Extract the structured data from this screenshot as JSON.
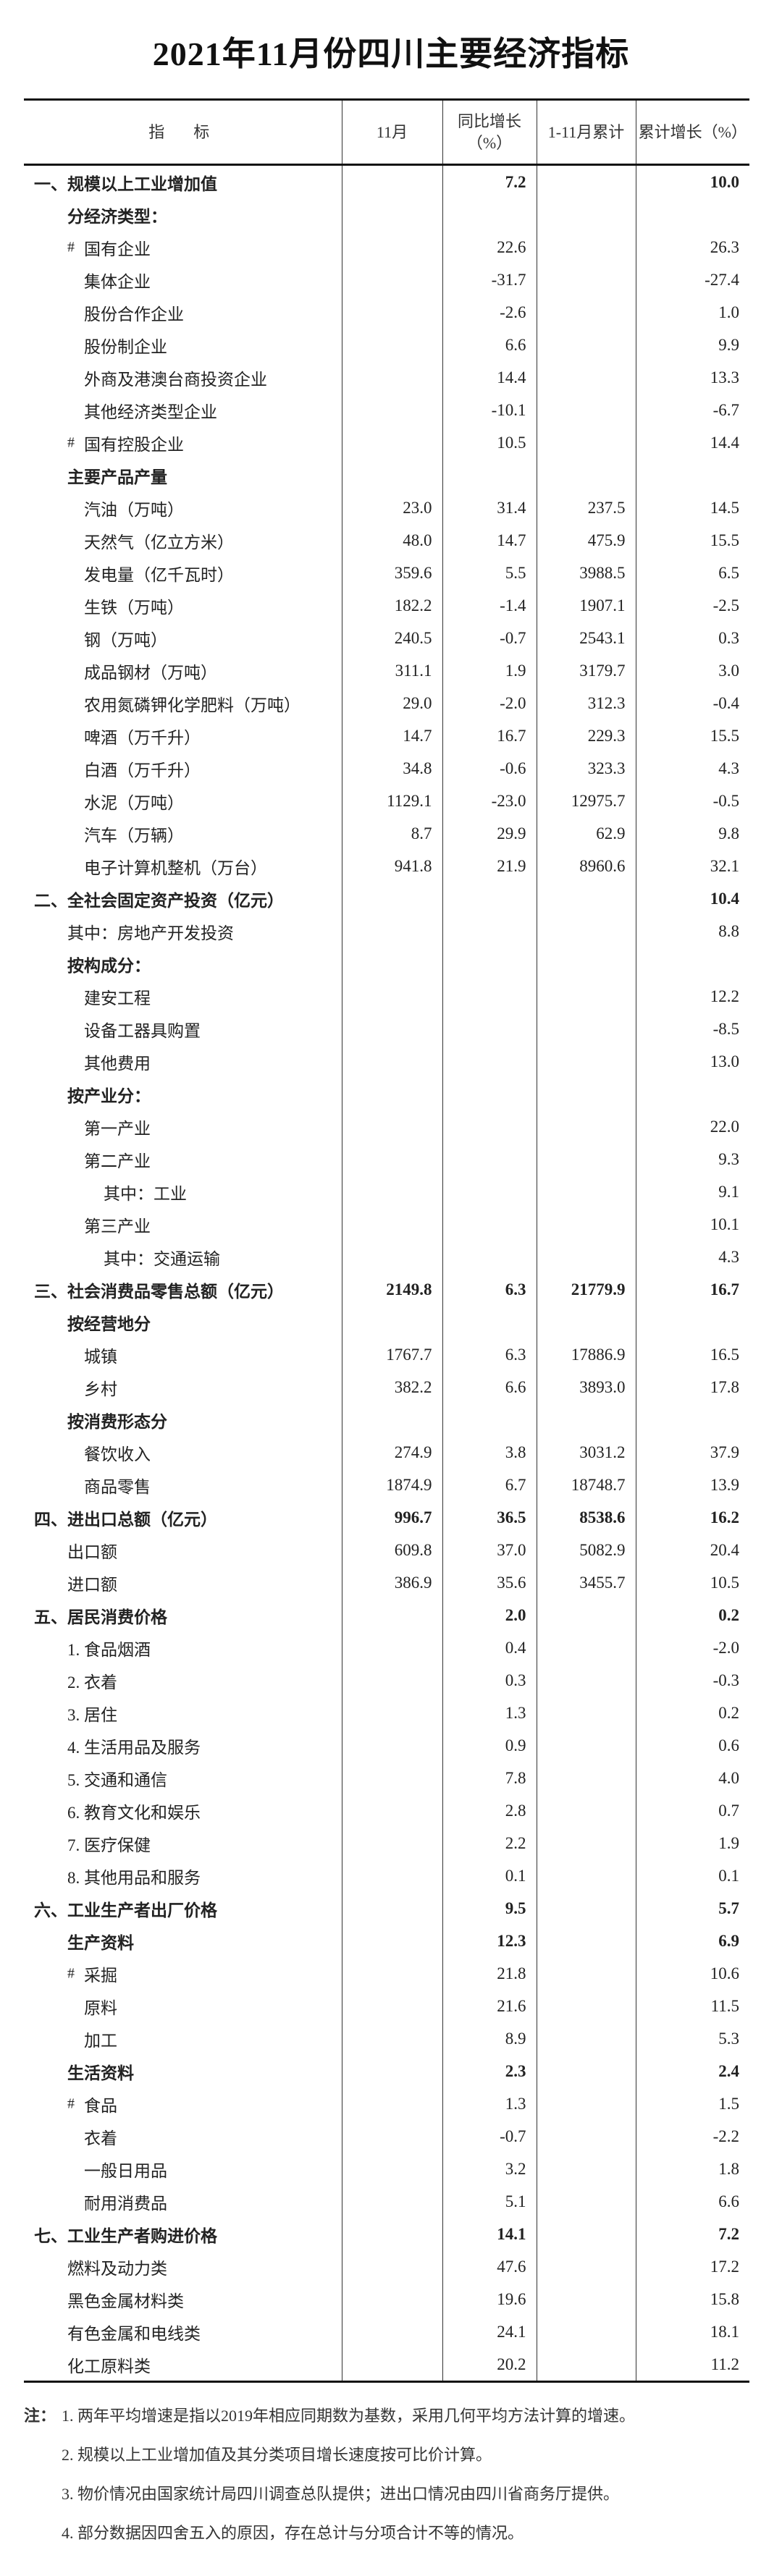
{
  "title": "2021年11月份四川主要经济指标",
  "headers": [
    "指标",
    "11月",
    "同比增长（%）",
    "1-11月累计",
    "累计增长（%）"
  ],
  "rows": [
    {
      "label": "一、规模以上工业增加值",
      "v": [
        "",
        "7.2",
        "",
        "10.0"
      ],
      "level": 0,
      "bold": true
    },
    {
      "label": "分经济类型：",
      "v": [
        "",
        "",
        "",
        ""
      ],
      "level": 1,
      "bold": true
    },
    {
      "label": "国有企业",
      "v": [
        "",
        "22.6",
        "",
        "26.3"
      ],
      "level": 2,
      "hash": "#"
    },
    {
      "label": "集体企业",
      "v": [
        "",
        "-31.7",
        "",
        "-27.4"
      ],
      "level": 2
    },
    {
      "label": "股份合作企业",
      "v": [
        "",
        "-2.6",
        "",
        "1.0"
      ],
      "level": 2
    },
    {
      "label": "股份制企业",
      "v": [
        "",
        "6.6",
        "",
        "9.9"
      ],
      "level": 2
    },
    {
      "label": "外商及港澳台商投资企业",
      "v": [
        "",
        "14.4",
        "",
        "13.3"
      ],
      "level": 2
    },
    {
      "label": "其他经济类型企业",
      "v": [
        "",
        "-10.1",
        "",
        "-6.7"
      ],
      "level": 2
    },
    {
      "label": "国有控股企业",
      "v": [
        "",
        "10.5",
        "",
        "14.4"
      ],
      "level": 2,
      "hash": "#"
    },
    {
      "label": "主要产品产量",
      "v": [
        "",
        "",
        "",
        ""
      ],
      "level": 1,
      "bold": true
    },
    {
      "label": "汽油（万吨）",
      "v": [
        "23.0",
        "31.4",
        "237.5",
        "14.5"
      ],
      "level": 2
    },
    {
      "label": "天然气（亿立方米）",
      "v": [
        "48.0",
        "14.7",
        "475.9",
        "15.5"
      ],
      "level": 2
    },
    {
      "label": "发电量（亿千瓦时）",
      "v": [
        "359.6",
        "5.5",
        "3988.5",
        "6.5"
      ],
      "level": 2
    },
    {
      "label": "生铁（万吨）",
      "v": [
        "182.2",
        "-1.4",
        "1907.1",
        "-2.5"
      ],
      "level": 2
    },
    {
      "label": "钢（万吨）",
      "v": [
        "240.5",
        "-0.7",
        "2543.1",
        "0.3"
      ],
      "level": 2
    },
    {
      "label": "成品钢材（万吨）",
      "v": [
        "311.1",
        "1.9",
        "3179.7",
        "3.0"
      ],
      "level": 2
    },
    {
      "label": "农用氮磷钾化学肥料（万吨）",
      "v": [
        "29.0",
        "-2.0",
        "312.3",
        "-0.4"
      ],
      "level": 2
    },
    {
      "label": "啤酒（万千升）",
      "v": [
        "14.7",
        "16.7",
        "229.3",
        "15.5"
      ],
      "level": 2
    },
    {
      "label": "白酒（万千升）",
      "v": [
        "34.8",
        "-0.6",
        "323.3",
        "4.3"
      ],
      "level": 2
    },
    {
      "label": "水泥（万吨）",
      "v": [
        "1129.1",
        "-23.0",
        "12975.7",
        "-0.5"
      ],
      "level": 2
    },
    {
      "label": "汽车（万辆）",
      "v": [
        "8.7",
        "29.9",
        "62.9",
        "9.8"
      ],
      "level": 2
    },
    {
      "label": "电子计算机整机（万台）",
      "v": [
        "941.8",
        "21.9",
        "8960.6",
        "32.1"
      ],
      "level": 2
    },
    {
      "label": "二、全社会固定资产投资（亿元）",
      "v": [
        "",
        "",
        "",
        "10.4"
      ],
      "level": 0,
      "bold": true
    },
    {
      "label": "其中：房地产开发投资",
      "v": [
        "",
        "",
        "",
        "8.8"
      ],
      "level": 1
    },
    {
      "label": "按构成分：",
      "v": [
        "",
        "",
        "",
        ""
      ],
      "level": 1,
      "bold": true
    },
    {
      "label": "建安工程",
      "v": [
        "",
        "",
        "",
        "12.2"
      ],
      "level": 2
    },
    {
      "label": "设备工器具购置",
      "v": [
        "",
        "",
        "",
        "-8.5"
      ],
      "level": 2
    },
    {
      "label": "其他费用",
      "v": [
        "",
        "",
        "",
        "13.0"
      ],
      "level": 2
    },
    {
      "label": "按产业分：",
      "v": [
        "",
        "",
        "",
        ""
      ],
      "level": 1,
      "bold": true
    },
    {
      "label": "第一产业",
      "v": [
        "",
        "",
        "",
        "22.0"
      ],
      "level": 2
    },
    {
      "label": "第二产业",
      "v": [
        "",
        "",
        "",
        "9.3"
      ],
      "level": 2
    },
    {
      "label": "其中：工业",
      "v": [
        "",
        "",
        "",
        "9.1"
      ],
      "level": 3
    },
    {
      "label": "第三产业",
      "v": [
        "",
        "",
        "",
        "10.1"
      ],
      "level": 2
    },
    {
      "label": "其中：交通运输",
      "v": [
        "",
        "",
        "",
        "4.3"
      ],
      "level": 3
    },
    {
      "label": "三、社会消费品零售总额（亿元）",
      "v": [
        "2149.8",
        "6.3",
        "21779.9",
        "16.7"
      ],
      "level": 0,
      "bold": true
    },
    {
      "label": "按经营地分",
      "v": [
        "",
        "",
        "",
        ""
      ],
      "level": 1,
      "bold": true
    },
    {
      "label": "城镇",
      "v": [
        "1767.7",
        "6.3",
        "17886.9",
        "16.5"
      ],
      "level": 2
    },
    {
      "label": "乡村",
      "v": [
        "382.2",
        "6.6",
        "3893.0",
        "17.8"
      ],
      "level": 2
    },
    {
      "label": "按消费形态分",
      "v": [
        "",
        "",
        "",
        ""
      ],
      "level": 1,
      "bold": true
    },
    {
      "label": "餐饮收入",
      "v": [
        "274.9",
        "3.8",
        "3031.2",
        "37.9"
      ],
      "level": 2
    },
    {
      "label": "商品零售",
      "v": [
        "1874.9",
        "6.7",
        "18748.7",
        "13.9"
      ],
      "level": 2
    },
    {
      "label": "四、进出口总额（亿元）",
      "v": [
        "996.7",
        "36.5",
        "8538.6",
        "16.2"
      ],
      "level": 0,
      "bold": true
    },
    {
      "label": "出口额",
      "v": [
        "609.8",
        "37.0",
        "5082.9",
        "20.4"
      ],
      "level": 1
    },
    {
      "label": "进口额",
      "v": [
        "386.9",
        "35.6",
        "3455.7",
        "10.5"
      ],
      "level": 1
    },
    {
      "label": "五、居民消费价格",
      "v": [
        "",
        "2.0",
        "",
        "0.2"
      ],
      "level": 0,
      "bold": true
    },
    {
      "label": "1. 食品烟酒",
      "v": [
        "",
        "0.4",
        "",
        "-2.0"
      ],
      "level": 1
    },
    {
      "label": "2. 衣着",
      "v": [
        "",
        "0.3",
        "",
        "-0.3"
      ],
      "level": 1
    },
    {
      "label": "3. 居住",
      "v": [
        "",
        "1.3",
        "",
        "0.2"
      ],
      "level": 1
    },
    {
      "label": "4. 生活用品及服务",
      "v": [
        "",
        "0.9",
        "",
        "0.6"
      ],
      "level": 1
    },
    {
      "label": "5. 交通和通信",
      "v": [
        "",
        "7.8",
        "",
        "4.0"
      ],
      "level": 1
    },
    {
      "label": "6. 教育文化和娱乐",
      "v": [
        "",
        "2.8",
        "",
        "0.7"
      ],
      "level": 1
    },
    {
      "label": "7. 医疗保健",
      "v": [
        "",
        "2.2",
        "",
        "1.9"
      ],
      "level": 1
    },
    {
      "label": "8. 其他用品和服务",
      "v": [
        "",
        "0.1",
        "",
        "0.1"
      ],
      "level": 1
    },
    {
      "label": "六、工业生产者出厂价格",
      "v": [
        "",
        "9.5",
        "",
        "5.7"
      ],
      "level": 0,
      "bold": true
    },
    {
      "label": "生产资料",
      "v": [
        "",
        "12.3",
        "",
        "6.9"
      ],
      "level": 1,
      "bold": true
    },
    {
      "label": "采掘",
      "v": [
        "",
        "21.8",
        "",
        "10.6"
      ],
      "level": 2,
      "hash": "#"
    },
    {
      "label": "原料",
      "v": [
        "",
        "21.6",
        "",
        "11.5"
      ],
      "level": 2
    },
    {
      "label": "加工",
      "v": [
        "",
        "8.9",
        "",
        "5.3"
      ],
      "level": 2
    },
    {
      "label": "生活资料",
      "v": [
        "",
        "2.3",
        "",
        "2.4"
      ],
      "level": 1,
      "bold": true
    },
    {
      "label": "食品",
      "v": [
        "",
        "1.3",
        "",
        "1.5"
      ],
      "level": 2,
      "hash": "#"
    },
    {
      "label": "衣着",
      "v": [
        "",
        "-0.7",
        "",
        "-2.2"
      ],
      "level": 2
    },
    {
      "label": "一般日用品",
      "v": [
        "",
        "3.2",
        "",
        "1.8"
      ],
      "level": 2
    },
    {
      "label": "耐用消费品",
      "v": [
        "",
        "5.1",
        "",
        "6.6"
      ],
      "level": 2
    },
    {
      "label": "七、工业生产者购进价格",
      "v": [
        "",
        "14.1",
        "",
        "7.2"
      ],
      "level": 0,
      "bold": true
    },
    {
      "label": "燃料及动力类",
      "v": [
        "",
        "47.6",
        "",
        "17.2"
      ],
      "level": 1
    },
    {
      "label": "黑色金属材料类",
      "v": [
        "",
        "19.6",
        "",
        "15.8"
      ],
      "level": 1
    },
    {
      "label": "有色金属和电线类",
      "v": [
        "",
        "24.1",
        "",
        "18.1"
      ],
      "level": 1
    },
    {
      "label": "化工原料类",
      "v": [
        "",
        "20.2",
        "",
        "11.2"
      ],
      "level": 1
    }
  ],
  "notes": {
    "prefix": "注：",
    "items": [
      "1. 两年平均增速是指以2019年相应同期数为基数，采用几何平均方法计算的增速。",
      "2. 规模以上工业增加值及其分类项目增长速度按可比价计算。",
      "3. 物价情况由国家统计局四川调查总队提供；进出口情况由四川省商务厅提供。",
      "4. 部分数据因四舍五入的原因，存在总计与分项合计不等的情况。"
    ]
  }
}
